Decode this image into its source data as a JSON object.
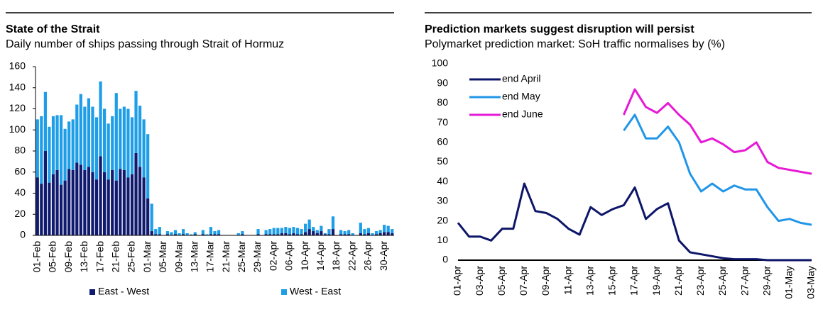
{
  "chart_data": [
    {
      "type": "bar",
      "title": "State of the Strait",
      "subtitle": "Daily number of ships passing through Strait of Hormuz",
      "stacked": true,
      "legend": "bottom",
      "categories": [
        "01-Feb",
        null,
        null,
        null,
        "05-Feb",
        null,
        null,
        null,
        "09-Feb",
        null,
        null,
        null,
        "13-Feb",
        null,
        null,
        null,
        "17-Feb",
        null,
        null,
        null,
        "21-Feb",
        null,
        null,
        null,
        "25-Feb",
        null,
        null,
        null,
        "01-Mar",
        null,
        null,
        null,
        "05-Mar",
        null,
        null,
        null,
        "09-Mar",
        null,
        null,
        null,
        "13-Mar",
        null,
        null,
        null,
        "17-Mar",
        null,
        null,
        null,
        "21-Mar",
        null,
        null,
        null,
        "25-Mar",
        null,
        null,
        null,
        "29-Mar",
        null,
        null,
        null,
        "02-Apr",
        null,
        null,
        null,
        "06-Apr",
        null,
        null,
        null,
        "10-Apr",
        null,
        null,
        null,
        "14-Apr",
        null,
        null,
        null,
        "18-Apr",
        null,
        null,
        null,
        "22-Apr",
        null,
        null,
        null,
        "26-Apr",
        null,
        null,
        null,
        "30-Apr",
        null,
        null
      ],
      "series": [
        {
          "name": "East - West",
          "color": "#101a6e",
          "values": [
            55,
            49,
            80,
            50,
            58,
            62,
            48,
            52,
            63,
            62,
            69,
            67,
            62,
            65,
            60,
            53,
            75,
            60,
            53,
            62,
            52,
            63,
            62,
            55,
            58,
            78,
            65,
            55,
            35,
            4,
            1,
            1,
            0,
            1,
            0,
            1,
            0,
            1,
            0,
            0,
            1,
            0,
            1,
            0,
            1,
            1,
            1,
            0,
            0,
            0,
            0,
            0,
            1,
            0,
            0,
            0,
            1,
            0,
            1,
            1,
            1,
            1,
            2,
            2,
            1,
            2,
            1,
            1,
            3,
            6,
            4,
            2,
            4,
            1,
            1,
            6,
            0,
            1,
            1,
            1,
            0,
            0,
            2,
            1,
            2,
            0,
            1,
            2,
            3,
            3,
            2
          ]
        },
        {
          "name": "West - East",
          "color": "#1f9ee8",
          "values": [
            55,
            64,
            56,
            53,
            55,
            52,
            66,
            49,
            45,
            48,
            55,
            67,
            60,
            65,
            62,
            59,
            71,
            60,
            53,
            51,
            83,
            57,
            60,
            65,
            54,
            59,
            58,
            55,
            61,
            26,
            5,
            7,
            0,
            3,
            3,
            4,
            2,
            5,
            2,
            1,
            2,
            0,
            4,
            1,
            7,
            3,
            4,
            0,
            0,
            0,
            0,
            2,
            3,
            0,
            0,
            0,
            5,
            0,
            4,
            5,
            6,
            6,
            5,
            6,
            6,
            6,
            6,
            5,
            8,
            9,
            4,
            3,
            5,
            1,
            5,
            12,
            0,
            4,
            3,
            4,
            2,
            0,
            10,
            5,
            5,
            2,
            3,
            3,
            7,
            6,
            4
          ]
        }
      ],
      "ylim": [
        0,
        160
      ],
      "yticks": [
        0,
        20,
        40,
        60,
        80,
        100,
        120,
        140,
        160
      ],
      "grid": false
    },
    {
      "type": "line",
      "title": "Prediction markets suggest disruption will persist",
      "subtitle": "Polymarket prediction market: SoH traffic normalises by (%)",
      "legend": "upper left",
      "categories": [
        "01-Apr",
        null,
        "03-Apr",
        null,
        "05-Apr",
        null,
        "07-Apr",
        null,
        "09-Apr",
        null,
        "11-Apr",
        null,
        "13-Apr",
        null,
        "15-Apr",
        null,
        "17-Apr",
        null,
        "19-Apr",
        null,
        "21-Apr",
        null,
        "23-Apr",
        null,
        "25-Apr",
        null,
        "27-Apr",
        null,
        "29-Apr",
        null,
        "01-May",
        null,
        "03-May"
      ],
      "series": [
        {
          "name": "end April",
          "color": "#0d1668",
          "values": [
            19,
            12,
            12,
            10,
            16,
            16,
            39,
            25,
            24,
            21,
            16,
            13,
            27,
            23,
            26,
            28,
            37,
            21,
            26,
            29,
            10,
            4,
            3,
            2,
            1,
            0.5,
            0.5,
            0.5,
            0,
            0,
            0,
            0,
            0
          ]
        },
        {
          "name": "end May",
          "color": "#2196e8",
          "values": [
            null,
            null,
            null,
            null,
            null,
            null,
            null,
            null,
            null,
            null,
            null,
            null,
            null,
            null,
            null,
            66,
            74,
            62,
            62,
            68,
            60,
            44,
            35,
            39,
            35,
            38,
            36,
            36,
            27,
            20,
            21,
            19,
            18
          ]
        },
        {
          "name": "end June",
          "color": "#e61ad6",
          "values": [
            null,
            null,
            null,
            null,
            null,
            null,
            null,
            null,
            null,
            null,
            null,
            null,
            null,
            null,
            null,
            74,
            87,
            78,
            75,
            80,
            74,
            69,
            60,
            62,
            59,
            55,
            56,
            60,
            50,
            47,
            46,
            45,
            44
          ]
        }
      ],
      "ylim": [
        0,
        100
      ],
      "yticks": [
        0,
        10,
        20,
        30,
        40,
        50,
        60,
        70,
        80,
        90,
        100
      ],
      "grid": false
    }
  ]
}
